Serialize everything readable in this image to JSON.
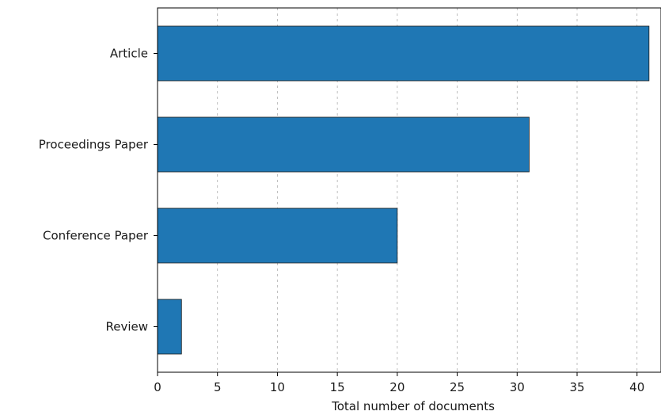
{
  "chart_data": {
    "type": "bar",
    "orientation": "horizontal",
    "categories": [
      "Article",
      "Proceedings Paper",
      "Conference Paper",
      "Review"
    ],
    "values": [
      41,
      31,
      20,
      2
    ],
    "xlabel": "Total number of documents",
    "ylabel": "",
    "xlim": [
      0,
      42
    ],
    "xticks": [
      0,
      5,
      10,
      15,
      20,
      25,
      30,
      35,
      40
    ],
    "grid": "x-dashed",
    "bar_color": "#1f77b4",
    "bar_edge_color": "#1a1a1a",
    "grid_color": "#b0b0b0"
  }
}
